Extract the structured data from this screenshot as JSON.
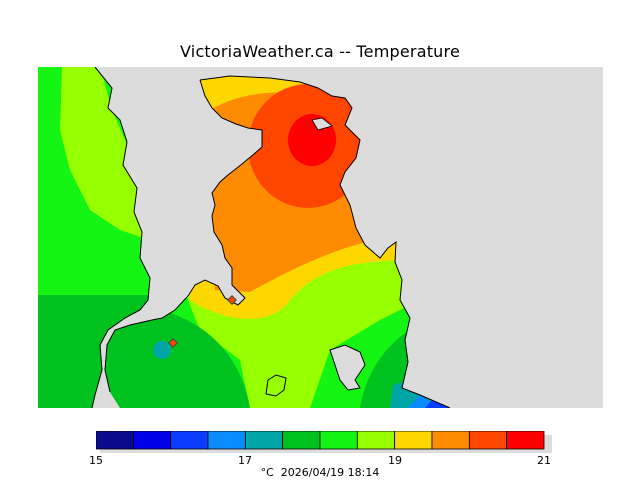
{
  "title": "VictoriaWeather.ca -- Temperature",
  "legend": {
    "unit": "°C",
    "timestamp": "2026/04/19 18:14",
    "ticks": [
      "15",
      "17",
      "19",
      "21"
    ],
    "colors": [
      "#0a0a8c",
      "#0000e6",
      "#0a3cff",
      "#0a8cff",
      "#00a5a5",
      "#00c21e",
      "#14f514",
      "#96ff00",
      "#ffd700",
      "#ff8c00",
      "#ff4600",
      "#ff0000"
    ]
  },
  "map": {
    "background": "#dcdcdc",
    "stations": 2
  }
}
